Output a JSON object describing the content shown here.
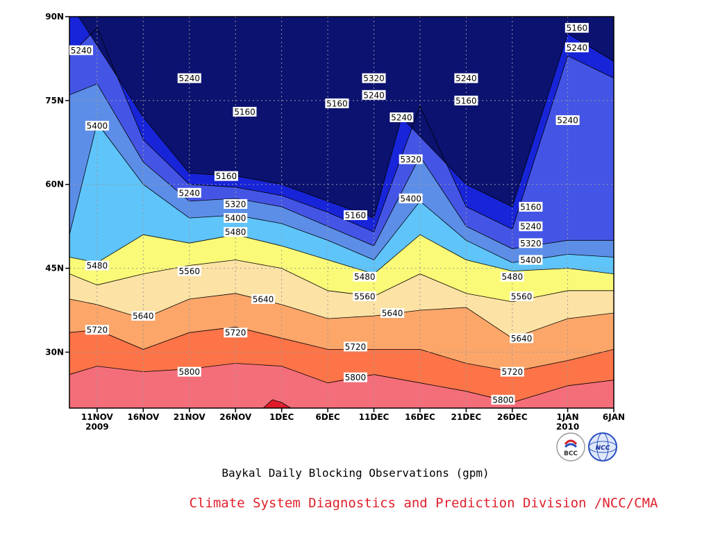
{
  "chart_data": {
    "type": "heatmap",
    "subtype": "filled-contour",
    "title": "Baykal Daily Blocking Observations (gpm)",
    "credit": "Climate System Diagnostics and Prediction Division /NCC/CMA",
    "x": {
      "tick_labels": [
        "11NOV",
        "16NOV",
        "21NOV",
        "26NOV",
        "1DEC",
        "6DEC",
        "11DEC",
        "16DEC",
        "21DEC",
        "26DEC",
        "1JAN",
        "6JAN"
      ],
      "year_labels": [
        {
          "at": "11NOV",
          "text": "2009"
        },
        {
          "at": "1JAN",
          "text": "2010"
        }
      ],
      "range": [
        "2009-11-08",
        "2010-01-06"
      ]
    },
    "y": {
      "tick_labels": [
        "30N",
        "45N",
        "60N",
        "75N",
        "90N"
      ],
      "range": [
        20,
        90
      ],
      "unit": "latitude (degrees N)"
    },
    "contour_levels": [
      5160,
      5240,
      5320,
      5400,
      5480,
      5560,
      5640,
      5720,
      5800,
      5880
    ],
    "fill_colors": [
      "#0b1270",
      "#1724d8",
      "#4455e6",
      "#5c8ee8",
      "#5fc4fa",
      "#fafa78",
      "#fce2a4",
      "#fca66a",
      "#fc7448",
      "#f46e7a",
      "#e01a2a"
    ],
    "grid": true,
    "contour_lines": [
      {
        "level": 5880,
        "points": [
          [
            "2009-11-29",
            20
          ],
          [
            "2009-11-30",
            21.5
          ],
          [
            "2009-12-01",
            21
          ],
          [
            "2009-12-02",
            20
          ]
        ]
      },
      {
        "level": 5800,
        "points": [
          [
            "2009-11-08",
            26
          ],
          [
            "2009-11-11",
            27.5
          ],
          [
            "2009-11-16",
            26.5
          ],
          [
            "2009-11-21",
            27
          ],
          [
            "2009-11-26",
            28
          ],
          [
            "2009-12-01",
            27.5
          ],
          [
            "2009-12-06",
            24.5
          ],
          [
            "2009-12-11",
            26
          ],
          [
            "2009-12-16",
            24.5
          ],
          [
            "2009-12-21",
            23
          ],
          [
            "2009-12-26",
            21
          ],
          [
            "2010-01-01",
            24
          ],
          [
            "2010-01-06",
            25
          ]
        ]
      },
      {
        "level": 5720,
        "points": [
          [
            "2009-11-08",
            33.5
          ],
          [
            "2009-11-11",
            34
          ],
          [
            "2009-11-16",
            30.5
          ],
          [
            "2009-11-21",
            33.5
          ],
          [
            "2009-11-26",
            34.5
          ],
          [
            "2009-12-01",
            32.5
          ],
          [
            "2009-12-06",
            30.5
          ],
          [
            "2009-12-11",
            30.5
          ],
          [
            "2009-12-16",
            30.5
          ],
          [
            "2009-12-21",
            28
          ],
          [
            "2009-12-26",
            26.5
          ],
          [
            "2010-01-01",
            28.5
          ],
          [
            "2010-01-06",
            30.5
          ]
        ]
      },
      {
        "level": 5640,
        "points": [
          [
            "2009-11-08",
            39.5
          ],
          [
            "2009-11-11",
            38.5
          ],
          [
            "2009-11-16",
            36
          ],
          [
            "2009-11-21",
            39.5
          ],
          [
            "2009-11-26",
            40.5
          ],
          [
            "2009-12-01",
            38.5
          ],
          [
            "2009-12-06",
            36
          ],
          [
            "2009-12-11",
            36.5
          ],
          [
            "2009-12-16",
            37.5
          ],
          [
            "2009-12-21",
            38
          ],
          [
            "2009-12-26",
            32.5
          ],
          [
            "2010-01-01",
            36
          ],
          [
            "2010-01-06",
            37
          ]
        ]
      },
      {
        "level": 5560,
        "points": [
          [
            "2009-11-08",
            44
          ],
          [
            "2009-11-11",
            42
          ],
          [
            "2009-11-16",
            44
          ],
          [
            "2009-11-21",
            45.5
          ],
          [
            "2009-11-26",
            46.5
          ],
          [
            "2009-12-01",
            45
          ],
          [
            "2009-12-06",
            41
          ],
          [
            "2009-12-11",
            40
          ],
          [
            "2009-12-16",
            44
          ],
          [
            "2009-12-21",
            40.5
          ],
          [
            "2009-12-26",
            39
          ],
          [
            "2010-01-01",
            41
          ],
          [
            "2010-01-06",
            41
          ]
        ]
      },
      {
        "level": 5480,
        "points": [
          [
            "2009-11-08",
            47
          ],
          [
            "2009-11-11",
            46
          ],
          [
            "2009-11-16",
            51
          ],
          [
            "2009-11-21",
            49.5
          ],
          [
            "2009-11-26",
            51
          ],
          [
            "2009-12-01",
            49
          ],
          [
            "2009-12-06",
            46.5
          ],
          [
            "2009-12-11",
            44
          ],
          [
            "2009-12-16",
            51
          ],
          [
            "2009-12-21",
            46.5
          ],
          [
            "2009-12-26",
            44.5
          ],
          [
            "2010-01-01",
            45
          ],
          [
            "2010-01-06",
            44
          ]
        ]
      },
      {
        "level": 5400,
        "points": [
          [
            "2009-11-08",
            51
          ],
          [
            "2009-11-11",
            71
          ],
          [
            "2009-11-16",
            60
          ],
          [
            "2009-11-21",
            54
          ],
          [
            "2009-11-26",
            54.5
          ],
          [
            "2009-12-01",
            53
          ],
          [
            "2009-12-06",
            50
          ],
          [
            "2009-12-11",
            46.5
          ],
          [
            "2009-12-16",
            57
          ],
          [
            "2009-12-21",
            50
          ],
          [
            "2009-12-26",
            46
          ],
          [
            "2010-01-01",
            47.5
          ],
          [
            "2010-01-06",
            47
          ]
        ]
      },
      {
        "level": 5320,
        "points": [
          [
            "2009-11-08",
            76
          ],
          [
            "2009-11-11",
            78
          ],
          [
            "2009-11-16",
            64
          ],
          [
            "2009-11-21",
            57
          ],
          [
            "2009-11-26",
            57.5
          ],
          [
            "2009-12-01",
            56
          ],
          [
            "2009-12-06",
            52.5
          ],
          [
            "2009-12-11",
            49
          ],
          [
            "2009-12-16",
            65
          ],
          [
            "2009-12-21",
            52.5
          ],
          [
            "2009-12-26",
            48.5
          ],
          [
            "2010-01-01",
            50
          ],
          [
            "2010-01-06",
            50
          ]
        ]
      },
      {
        "level": 5240,
        "points": [
          [
            "2009-11-08",
            83
          ],
          [
            "2009-11-11",
            88
          ],
          [
            "2009-11-16",
            68
          ],
          [
            "2009-11-21",
            60
          ],
          [
            "2009-11-26",
            59.5
          ],
          [
            "2009-12-01",
            58
          ],
          [
            "2009-12-06",
            55
          ],
          [
            "2009-12-11",
            51.5
          ],
          [
            "2009-12-16",
            74
          ],
          [
            "2009-12-21",
            56
          ],
          [
            "2009-12-26",
            52
          ],
          [
            "2010-01-01",
            83
          ],
          [
            "2010-01-06",
            79
          ]
        ]
      },
      {
        "level": 5160,
        "points": [
          [
            "2009-11-09",
            90
          ],
          [
            "2009-11-16",
            72
          ],
          [
            "2009-11-21",
            62
          ],
          [
            "2009-11-26",
            61.5
          ],
          [
            "2009-12-01",
            60
          ],
          [
            "2009-12-06",
            57
          ],
          [
            "2009-12-11",
            54
          ],
          [
            "2009-12-14",
            72
          ],
          [
            "2009-12-21",
            60
          ],
          [
            "2009-12-26",
            56
          ],
          [
            "2010-01-01",
            87
          ],
          [
            "2010-01-06",
            82
          ]
        ]
      }
    ],
    "contour_labels": [
      {
        "text": "5240",
        "date": "2009-11-08",
        "lat": 84
      },
      {
        "text": "5240",
        "date": "2009-11-21",
        "lat": 79
      },
      {
        "text": "5160",
        "date": "2009-11-27",
        "lat": 73
      },
      {
        "text": "5400",
        "date": "2009-11-11",
        "lat": 70.5
      },
      {
        "text": "5160",
        "date": "2009-11-25",
        "lat": 61.5
      },
      {
        "text": "5240",
        "date": "2009-11-21",
        "lat": 58.5
      },
      {
        "text": "5320",
        "date": "2009-11-26",
        "lat": 56.5
      },
      {
        "text": "5400",
        "date": "2009-11-26",
        "lat": 54
      },
      {
        "text": "5480",
        "date": "2009-11-26",
        "lat": 51.5
      },
      {
        "text": "5480",
        "date": "2009-11-11",
        "lat": 45.5
      },
      {
        "text": "5560",
        "date": "2009-11-21",
        "lat": 44.5
      },
      {
        "text": "5640",
        "date": "2009-11-29",
        "lat": 39.5
      },
      {
        "text": "5640",
        "date": "2009-11-16",
        "lat": 36.5
      },
      {
        "text": "5720",
        "date": "2009-11-11",
        "lat": 34
      },
      {
        "text": "5720",
        "date": "2009-11-26",
        "lat": 33.5
      },
      {
        "text": "5800",
        "date": "2009-11-21",
        "lat": 26.5
      },
      {
        "text": "5160",
        "date": "2009-12-07",
        "lat": 74.5
      },
      {
        "text": "5320",
        "date": "2009-12-11",
        "lat": 79
      },
      {
        "text": "5240",
        "date": "2009-12-11",
        "lat": 76
      },
      {
        "text": "5240",
        "date": "2009-12-14",
        "lat": 72
      },
      {
        "text": "5320",
        "date": "2009-12-15",
        "lat": 64.5
      },
      {
        "text": "5400",
        "date": "2009-12-15",
        "lat": 57.5
      },
      {
        "text": "5160",
        "date": "2009-12-09",
        "lat": 54.5
      },
      {
        "text": "5480",
        "date": "2009-12-10",
        "lat": 43.5
      },
      {
        "text": "5560",
        "date": "2009-12-10",
        "lat": 40
      },
      {
        "text": "5640",
        "date": "2009-12-13",
        "lat": 37
      },
      {
        "text": "5720",
        "date": "2009-12-09",
        "lat": 31
      },
      {
        "text": "5800",
        "date": "2009-12-09",
        "lat": 25.5
      },
      {
        "text": "5240",
        "date": "2009-12-21",
        "lat": 79
      },
      {
        "text": "5160",
        "date": "2009-12-21",
        "lat": 75
      },
      {
        "text": "5160",
        "date": "2009-12-28",
        "lat": 56
      },
      {
        "text": "5240",
        "date": "2009-12-28",
        "lat": 52.5
      },
      {
        "text": "5320",
        "date": "2009-12-28",
        "lat": 49.5
      },
      {
        "text": "5400",
        "date": "2009-12-28",
        "lat": 46.5
      },
      {
        "text": "5480",
        "date": "2009-12-26",
        "lat": 43.5
      },
      {
        "text": "5560",
        "date": "2009-12-27",
        "lat": 40
      },
      {
        "text": "5640",
        "date": "2009-12-27",
        "lat": 32.5
      },
      {
        "text": "5720",
        "date": "2009-12-26",
        "lat": 26.5
      },
      {
        "text": "5800",
        "date": "2009-12-25",
        "lat": 21.5
      },
      {
        "text": "5160",
        "date": "2010-01-02",
        "lat": 88
      },
      {
        "text": "5240",
        "date": "2010-01-02",
        "lat": 84.5
      },
      {
        "text": "5240",
        "date": "2010-01-01",
        "lat": 71.5
      }
    ]
  },
  "logos": {
    "left": {
      "name": "bcc-logo",
      "text": "BCC"
    },
    "right": {
      "name": "ncc-logo",
      "text": "NCC"
    }
  }
}
